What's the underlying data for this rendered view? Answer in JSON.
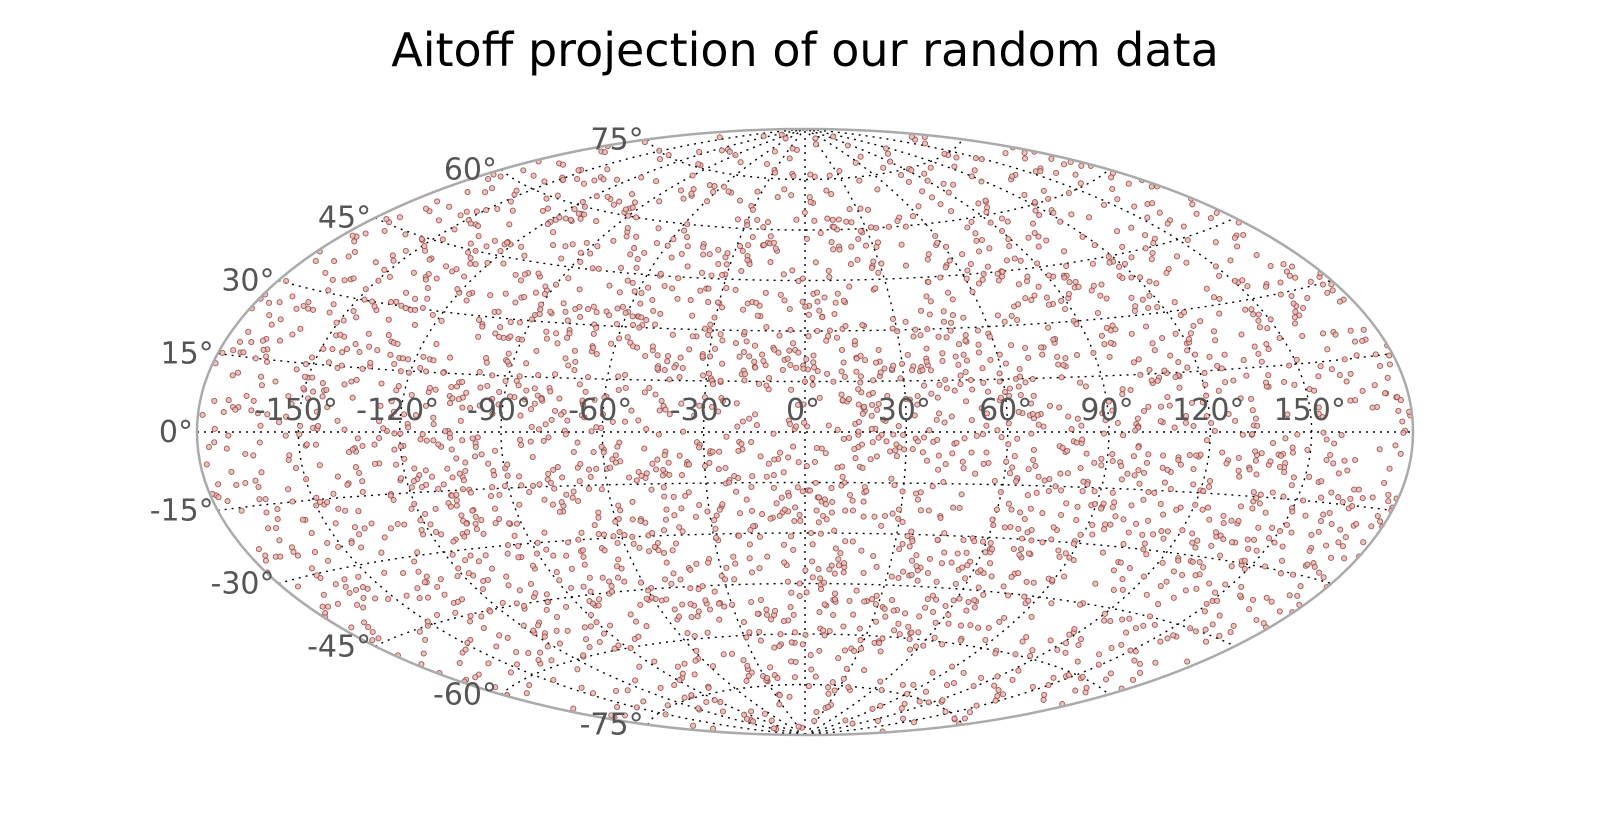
{
  "chart_data": {
    "type": "scatter",
    "projection": "aitoff",
    "title": "Aitoff projection of our random data",
    "xlabel": "",
    "ylabel": "",
    "xlim": [
      -180,
      180
    ],
    "ylim": [
      -90,
      90
    ],
    "grid": true,
    "longitude_ticks": [
      -150,
      -120,
      -90,
      -60,
      -30,
      0,
      30,
      60,
      90,
      120,
      150
    ],
    "latitude_ticks": [
      -75,
      -60,
      -45,
      -30,
      -15,
      0,
      15,
      30,
      45,
      60,
      75
    ],
    "longitude_tick_labels": [
      "-150°",
      "-120°",
      "-90°",
      "-60°",
      "-30°",
      "0°",
      "30°",
      "60°",
      "90°",
      "120°",
      "150°"
    ],
    "latitude_tick_labels": [
      "-75°",
      "-60°",
      "-45°",
      "-30°",
      "-15°",
      "0°",
      "15°",
      "30°",
      "45°",
      "60°",
      "75°"
    ],
    "marker_face_color": "#e8b8b0",
    "marker_edge_color": "#8b3a3a",
    "point_count": 3000,
    "points": [
      [
        -170,
        5
      ],
      [
        -165,
        -10
      ],
      [
        -160,
        22
      ],
      [
        -158,
        -28
      ],
      [
        -155,
        40
      ],
      [
        -152,
        -45
      ],
      [
        -150,
        12
      ],
      [
        -148,
        -3
      ],
      [
        -145,
        30
      ],
      [
        -142,
        -18
      ],
      [
        -140,
        55
      ],
      [
        -138,
        -55
      ],
      [
        -135,
        8
      ],
      [
        -132,
        -35
      ],
      [
        -130,
        45
      ],
      [
        -128,
        -62
      ],
      [
        -125,
        18
      ],
      [
        -122,
        -8
      ],
      [
        -120,
        35
      ],
      [
        -118,
        -25
      ],
      [
        -115,
        60
      ],
      [
        -112,
        -50
      ],
      [
        -110,
        2
      ],
      [
        -108,
        -40
      ],
      [
        -105,
        28
      ],
      [
        -102,
        -15
      ],
      [
        -100,
        50
      ],
      [
        -98,
        -65
      ],
      [
        -95,
        15
      ],
      [
        -92,
        -5
      ],
      [
        -90,
        40
      ],
      [
        -88,
        -30
      ],
      [
        -85,
        65
      ],
      [
        -82,
        -58
      ],
      [
        -80,
        10
      ],
      [
        -78,
        -20
      ],
      [
        -75,
        32
      ],
      [
        -72,
        -42
      ],
      [
        -70,
        58
      ],
      [
        -68,
        -10
      ],
      [
        -65,
        22
      ],
      [
        -62,
        -48
      ],
      [
        -60,
        5
      ],
      [
        -58,
        -68
      ],
      [
        -55,
        45
      ],
      [
        -52,
        -25
      ],
      [
        -50,
        70
      ],
      [
        -48,
        -35
      ],
      [
        -45,
        18
      ],
      [
        -42,
        -12
      ],
      [
        -40,
        52
      ],
      [
        -38,
        -55
      ],
      [
        -35,
        28
      ],
      [
        -32,
        -3
      ],
      [
        -30,
        62
      ],
      [
        -28,
        -40
      ],
      [
        -25,
        10
      ],
      [
        -22,
        -72
      ],
      [
        -20,
        38
      ],
      [
        -18,
        -20
      ],
      [
        -15,
        72
      ],
      [
        -12,
        -60
      ],
      [
        -10,
        25
      ],
      [
        -8,
        -8
      ],
      [
        -5,
        48
      ],
      [
        -2,
        -45
      ],
      [
        0,
        15
      ],
      [
        2,
        -30
      ],
      [
        5,
        68
      ],
      [
        8,
        -65
      ],
      [
        10,
        35
      ],
      [
        12,
        -15
      ],
      [
        15,
        55
      ],
      [
        18,
        -50
      ],
      [
        20,
        8
      ],
      [
        22,
        -25
      ],
      [
        25,
        42
      ],
      [
        28,
        -70
      ],
      [
        30,
        20
      ],
      [
        32,
        -5
      ],
      [
        35,
        60
      ],
      [
        38,
        -42
      ],
      [
        40,
        30
      ],
      [
        42,
        -58
      ],
      [
        45,
        12
      ],
      [
        48,
        -18
      ],
      [
        50,
        50
      ],
      [
        52,
        -35
      ],
      [
        55,
        25
      ],
      [
        58,
        -62
      ],
      [
        60,
        40
      ],
      [
        62,
        -10
      ],
      [
        65,
        65
      ],
      [
        68,
        -48
      ],
      [
        70,
        5
      ],
      [
        72,
        -28
      ],
      [
        75,
        45
      ],
      [
        78,
        -55
      ],
      [
        80,
        18
      ],
      [
        82,
        -3
      ],
      [
        85,
        35
      ],
      [
        88,
        -40
      ],
      [
        90,
        58
      ],
      [
        92,
        -20
      ],
      [
        95,
        10
      ],
      [
        98,
        -60
      ],
      [
        100,
        28
      ],
      [
        102,
        -8
      ],
      [
        105,
        48
      ],
      [
        108,
        -45
      ],
      [
        110,
        15
      ],
      [
        112,
        -30
      ],
      [
        115,
        40
      ],
      [
        118,
        -52
      ],
      [
        120,
        22
      ],
      [
        122,
        -12
      ],
      [
        125,
        32
      ],
      [
        128,
        -38
      ],
      [
        130,
        8
      ],
      [
        132,
        -25
      ],
      [
        135,
        45
      ],
      [
        138,
        -48
      ],
      [
        140,
        18
      ],
      [
        142,
        -5
      ],
      [
        145,
        28
      ],
      [
        148,
        -35
      ],
      [
        150,
        38
      ],
      [
        152,
        -15
      ],
      [
        155,
        12
      ],
      [
        158,
        -28
      ],
      [
        160,
        25
      ],
      [
        162,
        -8
      ],
      [
        165,
        15
      ],
      [
        168,
        -20
      ],
      [
        170,
        5
      ],
      [
        -175,
        -2
      ],
      [
        -168,
        15
      ],
      [
        -162,
        -35
      ],
      [
        -156,
        28
      ],
      [
        -146,
        -50
      ],
      [
        -136,
        38
      ],
      [
        -126,
        -15
      ],
      [
        -116,
        48
      ],
      [
        -106,
        -58
      ],
      [
        -96,
        25
      ],
      [
        -86,
        -12
      ],
      [
        -76,
        55
      ],
      [
        -66,
        -38
      ],
      [
        -56,
        12
      ],
      [
        -46,
        -65
      ],
      [
        -36,
        42
      ],
      [
        -26,
        -22
      ],
      [
        -16,
        58
      ],
      [
        -6,
        -52
      ],
      [
        4,
        30
      ],
      [
        14,
        -40
      ],
      [
        24,
        62
      ],
      [
        34,
        -18
      ],
      [
        44,
        38
      ],
      [
        54,
        -52
      ],
      [
        64,
        15
      ],
      [
        74,
        -35
      ],
      [
        84,
        48
      ],
      [
        94,
        -8
      ],
      [
        104,
        35
      ],
      [
        114,
        -55
      ],
      [
        124,
        10
      ],
      [
        134,
        -42
      ],
      [
        144,
        20
      ],
      [
        154,
        -22
      ],
      [
        164,
        32
      ],
      [
        174,
        -10
      ],
      [
        -172,
        18
      ],
      [
        -166,
        -25
      ],
      [
        -144,
        8
      ],
      [
        -124,
        -45
      ],
      [
        -104,
        62
      ],
      [
        -84,
        -48
      ],
      [
        -64,
        35
      ],
      [
        -44,
        -8
      ],
      [
        -24,
        52
      ],
      [
        -4,
        -35
      ],
      [
        16,
        22
      ],
      [
        36,
        -62
      ],
      [
        56,
        48
      ],
      [
        76,
        -15
      ],
      [
        96,
        42
      ],
      [
        116,
        -25
      ],
      [
        136,
        28
      ],
      [
        156,
        -45
      ]
    ]
  }
}
